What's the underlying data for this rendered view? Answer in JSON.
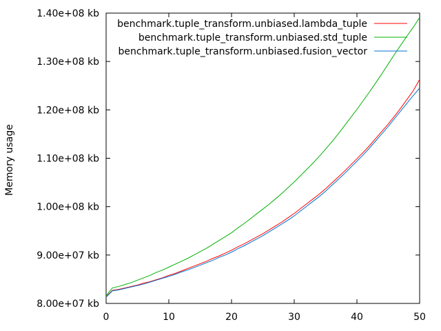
{
  "chart_data": {
    "type": "line",
    "title": "",
    "xlabel": "",
    "ylabel": "Memory usage",
    "xlim": [
      0,
      50
    ],
    "ylim": [
      80000000,
      140000000
    ],
    "x_ticks": [
      0,
      10,
      20,
      30,
      40,
      50
    ],
    "x_tick_labels": [
      "0",
      "10",
      "20",
      "30",
      "40",
      "50"
    ],
    "y_ticks": [
      80000000,
      90000000,
      100000000,
      110000000,
      120000000,
      130000000,
      140000000
    ],
    "y_tick_labels": [
      "8.00e+07 kb",
      "9.00e+07 kb",
      "1.00e+08 kb",
      "1.10e+08 kb",
      "1.20e+08 kb",
      "1.30e+08 kb",
      "1.40e+08 kb"
    ],
    "grid": false,
    "legend_position": "top-right",
    "x": [
      0,
      1,
      2,
      3,
      4,
      5,
      6,
      7,
      8,
      9,
      10,
      11,
      12,
      13,
      14,
      15,
      16,
      17,
      18,
      19,
      20,
      21,
      22,
      23,
      24,
      25,
      26,
      27,
      28,
      29,
      30,
      31,
      32,
      33,
      34,
      35,
      36,
      37,
      38,
      39,
      40,
      41,
      42,
      43,
      44,
      45,
      46,
      47,
      48,
      49,
      50
    ],
    "series": [
      {
        "name": "benchmark.tuple_transform.unbiased.lambda_tuple",
        "color": "#ff0000",
        "values": [
          81400000,
          82700000,
          82900000,
          83200000,
          83500000,
          83800000,
          84200000,
          84500000,
          84900000,
          85300000,
          85800000,
          86200000,
          86700000,
          87200000,
          87700000,
          88200000,
          88700000,
          89300000,
          89800000,
          90400000,
          91000000,
          91700000,
          92300000,
          93000000,
          93700000,
          94400000,
          95200000,
          96000000,
          96800000,
          97700000,
          98600000,
          99600000,
          100600000,
          101600000,
          102600000,
          103700000,
          104900000,
          106100000,
          107300000,
          108600000,
          109900000,
          111200000,
          112600000,
          114100000,
          115600000,
          117100000,
          118700000,
          120400000,
          122200000,
          124000000,
          126300000
        ]
      },
      {
        "name": "benchmark.tuple_transform.unbiased.std_tuple",
        "color": "#00b000",
        "values": [
          81600000,
          83200000,
          83500000,
          83900000,
          84300000,
          84800000,
          85300000,
          85800000,
          86400000,
          86900000,
          87500000,
          88100000,
          88700000,
          89300000,
          90000000,
          90700000,
          91400000,
          92200000,
          93000000,
          93800000,
          94600000,
          95600000,
          96500000,
          97500000,
          98500000,
          99500000,
          100500000,
          101600000,
          102700000,
          103900000,
          105100000,
          106400000,
          107700000,
          109000000,
          110400000,
          111900000,
          113400000,
          115000000,
          116700000,
          118400000,
          120100000,
          121900000,
          123700000,
          125600000,
          127500000,
          129500000,
          131500000,
          133400000,
          135300000,
          137100000,
          139100000
        ]
      },
      {
        "name": "benchmark.tuple_transform.unbiased.fusion_vector",
        "color": "#0070d0",
        "values": [
          81300000,
          82600000,
          82800000,
          83100000,
          83400000,
          83700000,
          84000000,
          84400000,
          84800000,
          85200000,
          85600000,
          86000000,
          86500000,
          86900000,
          87400000,
          87900000,
          88400000,
          88900000,
          89500000,
          90000000,
          90600000,
          91300000,
          91900000,
          92600000,
          93300000,
          94000000,
          94800000,
          95600000,
          96400000,
          97200000,
          98100000,
          99100000,
          100100000,
          101100000,
          102100000,
          103200000,
          104400000,
          105600000,
          106800000,
          108100000,
          109400000,
          110700000,
          112100000,
          113600000,
          115100000,
          116600000,
          118200000,
          119800000,
          121400000,
          123000000,
          124500000
        ]
      }
    ]
  }
}
